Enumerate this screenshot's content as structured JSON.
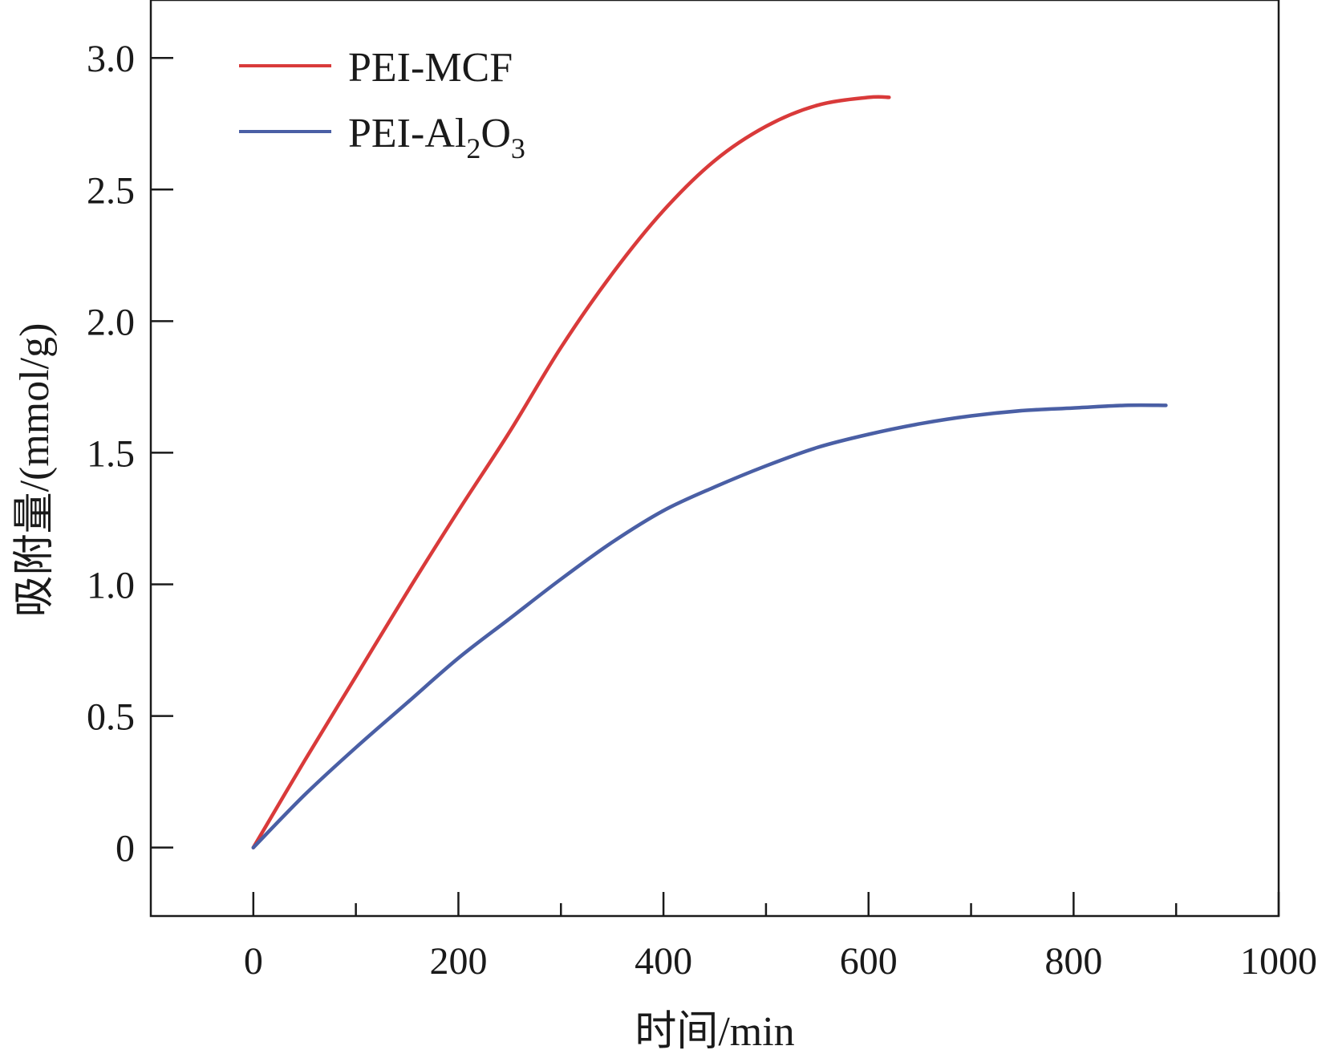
{
  "chart_data": {
    "type": "line",
    "title": "",
    "xlabel": "时间/min",
    "ylabel": "吸附量/(mmol/g)",
    "xlim": [
      -100,
      1000
    ],
    "ylim": [
      -0.26,
      3.22
    ],
    "x_ticks": [
      {
        "value": 0,
        "label": "0"
      },
      {
        "value": 200,
        "label": "200"
      },
      {
        "value": 400,
        "label": "400"
      },
      {
        "value": 600,
        "label": "600"
      },
      {
        "value": 800,
        "label": "800"
      },
      {
        "value": 1000,
        "label": "1000"
      }
    ],
    "x_minor_ticks": [
      100,
      300,
      500,
      700,
      900
    ],
    "y_ticks": [
      {
        "value": 0,
        "label": "0"
      },
      {
        "value": 0.5,
        "label": "0.5"
      },
      {
        "value": 1.0,
        "label": "1.0"
      },
      {
        "value": 1.5,
        "label": "1.5"
      },
      {
        "value": 2.0,
        "label": "2.0"
      },
      {
        "value": 2.5,
        "label": "2.5"
      },
      {
        "value": 3.0,
        "label": "3.0"
      }
    ],
    "legend": {
      "position": "top-left"
    },
    "series": [
      {
        "name": "PEI-MCF",
        "color": "#d93a3a",
        "x": [
          0,
          50,
          100,
          150,
          200,
          250,
          300,
          350,
          400,
          450,
          500,
          550,
          600,
          620
        ],
        "y": [
          0,
          0.33,
          0.65,
          0.97,
          1.28,
          1.58,
          1.9,
          2.18,
          2.42,
          2.61,
          2.74,
          2.82,
          2.85,
          2.85
        ]
      },
      {
        "name": "PEI-Al",
        "name_sub1": "2",
        "name_mid": "O",
        "name_sub2": "3",
        "color": "#4a5fa5",
        "x": [
          0,
          50,
          100,
          150,
          200,
          250,
          300,
          350,
          400,
          450,
          500,
          550,
          600,
          650,
          700,
          750,
          800,
          850,
          890
        ],
        "y": [
          0,
          0.2,
          0.38,
          0.55,
          0.72,
          0.87,
          1.02,
          1.16,
          1.28,
          1.37,
          1.45,
          1.52,
          1.57,
          1.61,
          1.64,
          1.66,
          1.67,
          1.68,
          1.68
        ]
      }
    ]
  }
}
